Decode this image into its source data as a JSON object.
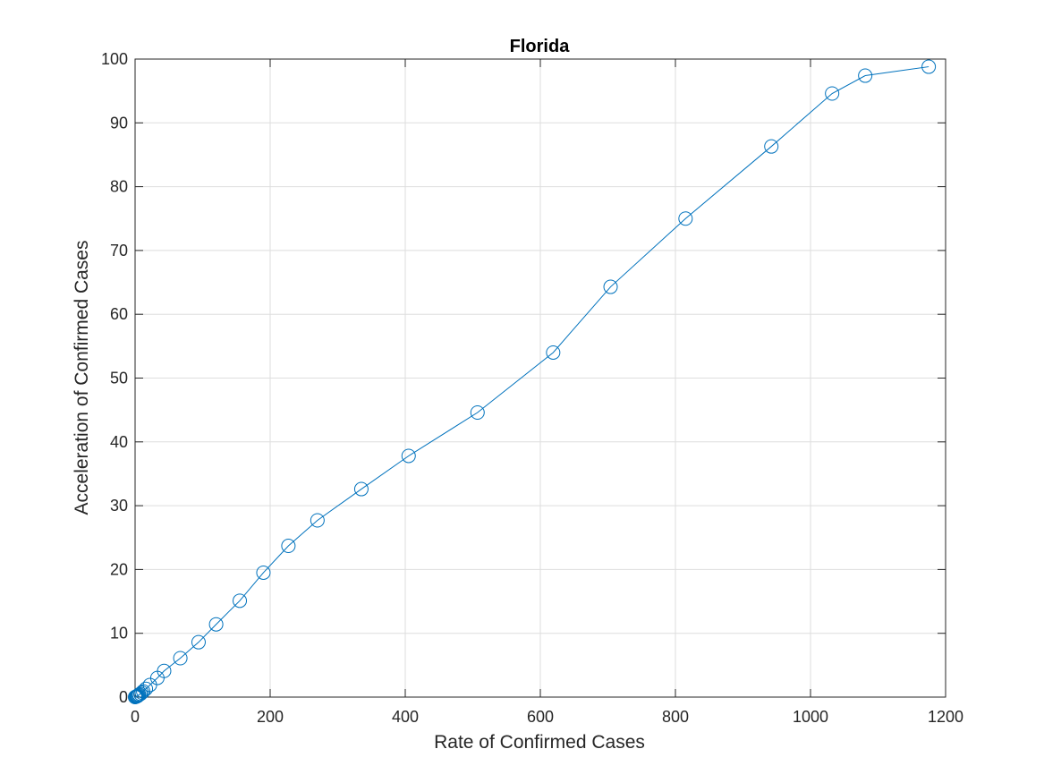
{
  "chart_data": {
    "type": "line",
    "title": "Florida",
    "xlabel": "Rate of Confirmed Cases",
    "ylabel": "Acceleration of Confirmed Cases",
    "xlim": [
      0,
      1200
    ],
    "ylim": [
      0,
      100
    ],
    "xticks": [
      0,
      200,
      400,
      600,
      800,
      1000,
      1200
    ],
    "yticks": [
      0,
      10,
      20,
      30,
      40,
      50,
      60,
      70,
      80,
      90,
      100
    ],
    "grid": true,
    "marker": "circle",
    "line_color": "#0072BD",
    "series": [
      {
        "x": [
          0,
          1,
          2,
          3,
          4,
          5,
          6,
          8,
          10,
          12,
          16,
          22,
          33,
          43,
          67,
          94,
          120,
          155,
          190,
          227,
          270,
          335,
          405,
          507,
          619,
          704,
          815,
          942,
          1032,
          1081,
          1175
        ],
        "y": [
          0,
          0.05,
          0.1,
          0.15,
          0.2,
          0.3,
          0.4,
          0.5,
          0.7,
          0.9,
          1.3,
          1.9,
          3.0,
          4.1,
          6.1,
          8.6,
          11.4,
          15.1,
          19.5,
          23.7,
          27.7,
          32.6,
          37.8,
          44.6,
          54.0,
          64.3,
          75.0,
          86.3,
          94.6,
          97.4,
          98.8
        ]
      }
    ]
  }
}
